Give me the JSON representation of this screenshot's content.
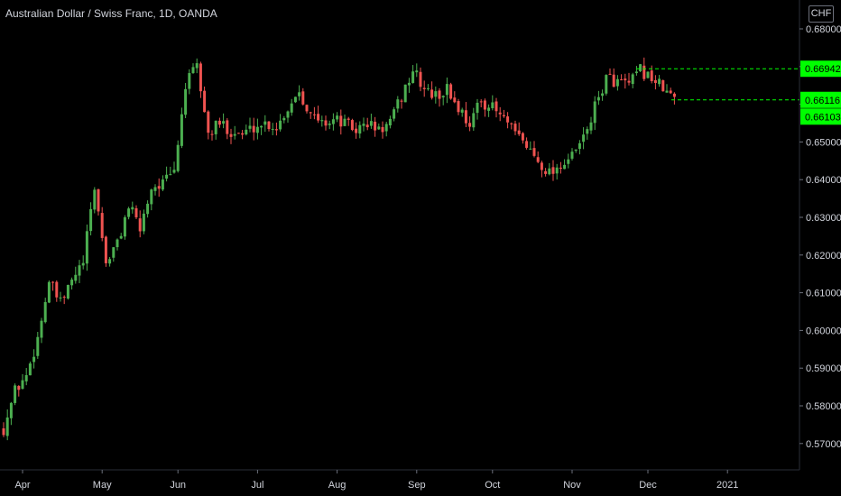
{
  "header": {
    "title": "Australian Dollar / Swiss Franc, 1D, OANDA",
    "currency": "CHF"
  },
  "colors": {
    "background": "#000000",
    "up": "#26a69a",
    "up_bright": "#4caf50",
    "down": "#ef5350",
    "tag": "#00ff00",
    "text": "#d1d4dc"
  },
  "chart_data": {
    "type": "candlestick",
    "symbol": "AUDCHF",
    "interval": "1D",
    "ylim": [
      0.565,
      0.68
    ],
    "y_ticks": [
      "0.57000",
      "0.58000",
      "0.59000",
      "0.60000",
      "0.61000",
      "0.62000",
      "0.63000",
      "0.64000",
      "0.65000",
      "0.66000",
      "0.67000",
      "0.68000"
    ],
    "x_ticks": [
      "Apr",
      "May",
      "Jun",
      "Jul",
      "Aug",
      "Sep",
      "Oct",
      "Nov",
      "Dec",
      "2021"
    ],
    "price_tags": [
      {
        "label": "0.66942",
        "value": 0.66942,
        "dashed": true
      },
      {
        "label": "0.66116",
        "value": 0.66116,
        "dashed": true
      },
      {
        "label": "0.66103",
        "value": 0.66103,
        "dashed": false
      }
    ],
    "path": [
      [
        0,
        0.574
      ],
      [
        3,
        0.584
      ],
      [
        6,
        0.588
      ],
      [
        9,
        0.598
      ],
      [
        12,
        0.613
      ],
      [
        15,
        0.607
      ],
      [
        18,
        0.613
      ],
      [
        21,
        0.618
      ],
      [
        24,
        0.638
      ],
      [
        27,
        0.618
      ],
      [
        30,
        0.623
      ],
      [
        33,
        0.633
      ],
      [
        36,
        0.627
      ],
      [
        39,
        0.638
      ],
      [
        42,
        0.639
      ],
      [
        45,
        0.642
      ],
      [
        48,
        0.665
      ],
      [
        51,
        0.67
      ],
      [
        54,
        0.652
      ],
      [
        57,
        0.655
      ],
      [
        60,
        0.653
      ],
      [
        63,
        0.652
      ],
      [
        66,
        0.654
      ],
      [
        69,
        0.655
      ],
      [
        72,
        0.654
      ],
      [
        75,
        0.659
      ],
      [
        78,
        0.664
      ],
      [
        81,
        0.657
      ],
      [
        84,
        0.655
      ],
      [
        87,
        0.656
      ],
      [
        90,
        0.655
      ],
      [
        93,
        0.653
      ],
      [
        96,
        0.655
      ],
      [
        99,
        0.653
      ],
      [
        102,
        0.655
      ],
      [
        105,
        0.662
      ],
      [
        108,
        0.669
      ],
      [
        111,
        0.664
      ],
      [
        114,
        0.662
      ],
      [
        117,
        0.664
      ],
      [
        120,
        0.659
      ],
      [
        123,
        0.655
      ],
      [
        126,
        0.661
      ],
      [
        129,
        0.659
      ],
      [
        132,
        0.656
      ],
      [
        135,
        0.652
      ],
      [
        138,
        0.649
      ],
      [
        141,
        0.645
      ],
      [
        144,
        0.642
      ],
      [
        147,
        0.644
      ],
      [
        150,
        0.646
      ],
      [
        153,
        0.651
      ],
      [
        156,
        0.659
      ],
      [
        159,
        0.667
      ],
      [
        162,
        0.666
      ],
      [
        165,
        0.665
      ],
      [
        168,
        0.669
      ],
      [
        171,
        0.667
      ],
      [
        174,
        0.664
      ],
      [
        177,
        0.6612
      ]
    ]
  }
}
